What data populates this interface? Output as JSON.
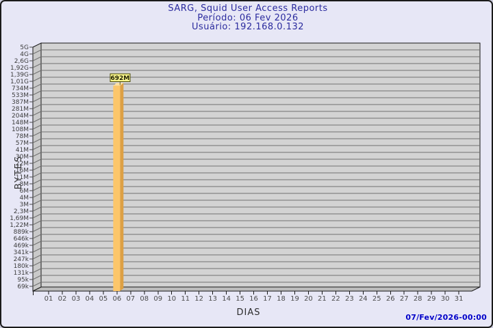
{
  "header": {
    "title": "SARG, Squid User Access Reports",
    "period": "Período: 06 Fev 2026",
    "user": "Usuário: 192.168.0.132"
  },
  "footer": {
    "timestamp": "07/Fev/2026-00:00"
  },
  "chart_data": {
    "type": "bar",
    "title": "SARG, Squid User Access Reports",
    "subtitle": [
      "Período: 06 Fev 2026",
      "Usuário: 192.168.0.132"
    ],
    "xlabel": "DIAS",
    "ylabel": "BYTES",
    "x_categories": [
      "01",
      "02",
      "03",
      "04",
      "05",
      "06",
      "07",
      "08",
      "09",
      "10",
      "11",
      "12",
      "13",
      "14",
      "15",
      "16",
      "17",
      "18",
      "19",
      "20",
      "21",
      "22",
      "23",
      "24",
      "25",
      "26",
      "27",
      "28",
      "29",
      "30",
      "31"
    ],
    "y_tick_labels": [
      "5G",
      "4G",
      "2,6G",
      "1,92G",
      "1,39G",
      "1,01G",
      "734M",
      "533M",
      "387M",
      "281M",
      "204M",
      "148M",
      "108M",
      "78M",
      "57M",
      "41M",
      "30M",
      "22M",
      "16M",
      "11M",
      "8M",
      "6M",
      "4M",
      "3M",
      "2,3M",
      "1,69M",
      "1,22M",
      "889k",
      "646k",
      "469k",
      "341k",
      "247k",
      "180k",
      "131k",
      "95k",
      "69k"
    ],
    "y_axis": {
      "scale": "log",
      "min_bytes": 70656,
      "max_bytes": 5368709120
    },
    "grid": "on",
    "legend": "none",
    "bars": [
      {
        "day": "06",
        "label": "692M",
        "value_bytes": 725614592
      }
    ],
    "colors": {
      "bar_front": "#fcc66a",
      "bar_side": "#dda044",
      "bar_top": "#fee1a1",
      "value_box_bg": "#fbf88e",
      "value_box_border": "#454500",
      "value_box_text": "#1c1c00",
      "plot_bg": "#d3d3d3",
      "grid_line": "#707070",
      "wall": "#c9c9c9",
      "floor": "#bdbdbd",
      "edge": "#161616",
      "tick_text": "#3b3b3b",
      "title_text": "#2a2a9e",
      "timestamp_text": "#0101c9"
    }
  }
}
